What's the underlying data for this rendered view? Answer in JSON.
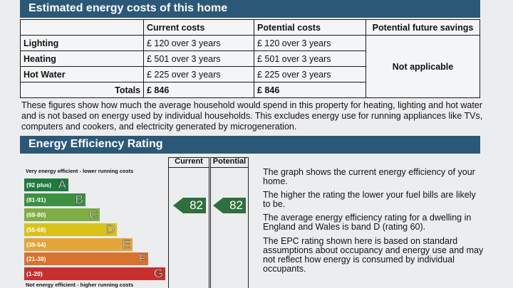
{
  "costs_section": {
    "title": "Estimated energy costs of this home",
    "headers": [
      "",
      "Current costs",
      "Potential costs",
      "Potential future savings"
    ],
    "rows": [
      {
        "label": "Lighting",
        "current": "£ 120 over 3 years",
        "potential": "£ 120 over 3 years"
      },
      {
        "label": "Heating",
        "current": "£ 501 over 3 years",
        "potential": "£ 501 over 3 years"
      },
      {
        "label": "Hot Water",
        "current": "£ 225 over 3 years",
        "potential": "£ 225 over 3 years"
      }
    ],
    "totals": {
      "label": "Totals",
      "current": "£ 846",
      "potential": "£ 846"
    },
    "savings": "Not applicable",
    "description": "These figures show how much the average household would spend in this property for heating, lighting and hot water and is not based on energy used by individual households. This excludes energy use for running appliances like TVs, computers and cookers, and electricity generated by microgeneration."
  },
  "rating_section": {
    "title": "Energy Efficiency Rating",
    "top_label": "Very energy efficient - lower running costs",
    "bottom_label": "Not energy efficient - higher running costs",
    "col_current": "Current",
    "col_potential": "Potential",
    "bands": [
      {
        "range": "(92 plus)",
        "letter": "A",
        "color": "#1f7a3c"
      },
      {
        "range": "(81-91)",
        "letter": "B",
        "color": "#3c8f43"
      },
      {
        "range": "(69-80)",
        "letter": "C",
        "color": "#7fae45"
      },
      {
        "range": "(55-68)",
        "letter": "D",
        "color": "#d9c21c"
      },
      {
        "range": "(39-54)",
        "letter": "E",
        "color": "#e3a43a"
      },
      {
        "range": "(21-38)",
        "letter": "F",
        "color": "#d8732f"
      },
      {
        "range": "(1-20)",
        "letter": "G",
        "color": "#c8302f"
      }
    ],
    "current_value": "82",
    "potential_value": "82",
    "arrow_color": "#2f6f3e",
    "info": [
      "The graph shows the current energy efficiency of your home.",
      "The higher the rating the lower your fuel bills are likely to be.",
      "The average energy efficiency rating for a dwelling in England and Wales is band D (rating 60).",
      "The EPC rating shown here is based on standard assumptions about occupancy and energy use and may not reflect how energy is consumed by individual occupants."
    ]
  }
}
